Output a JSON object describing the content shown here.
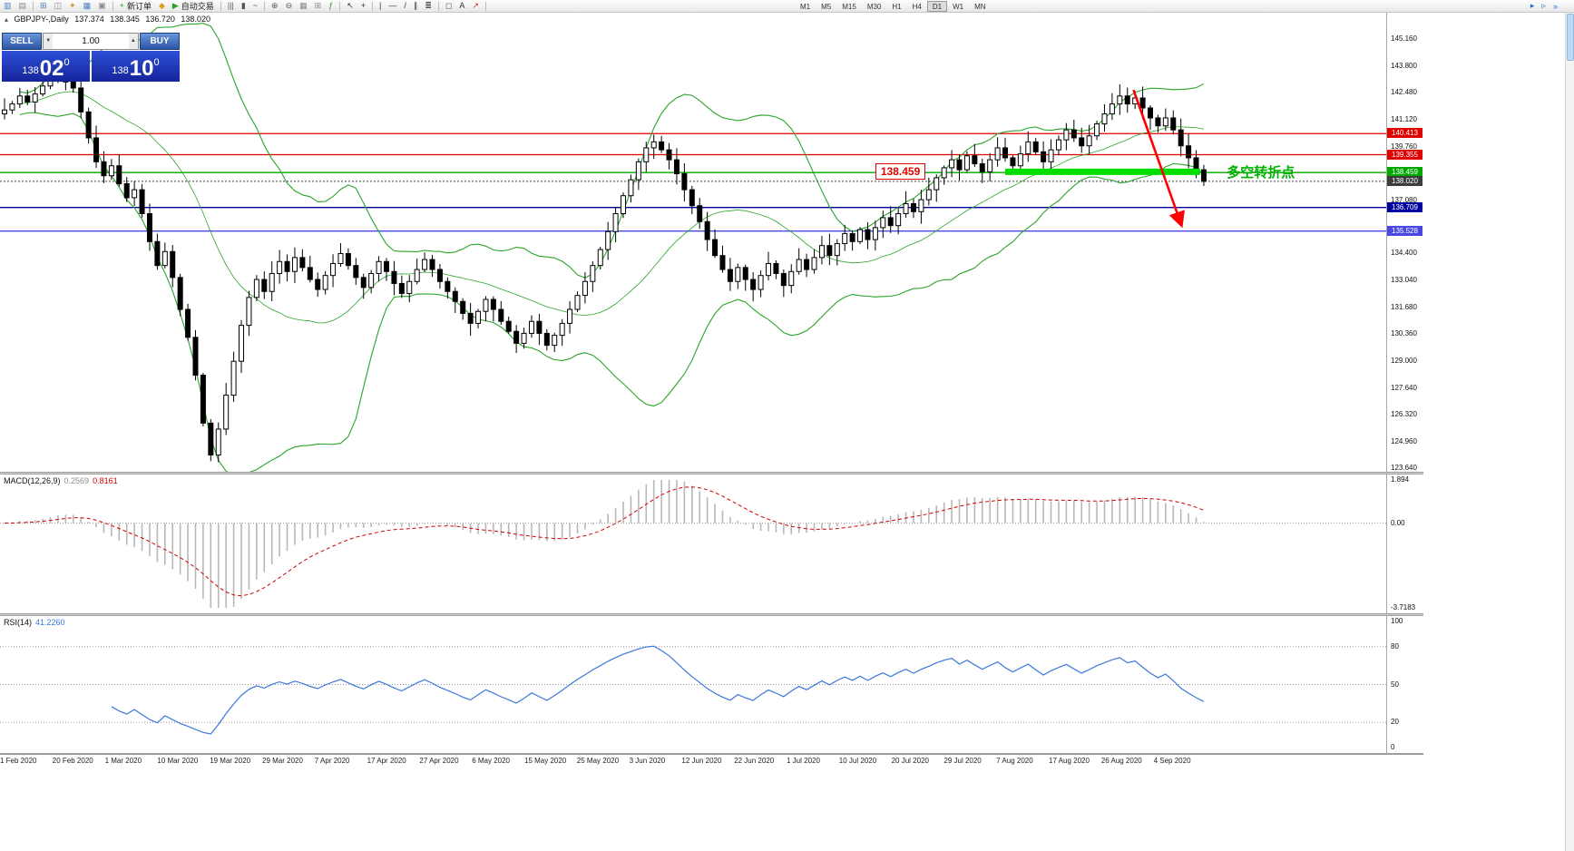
{
  "toolbar": {
    "items": [
      {
        "name": "new-chart-icon",
        "glyph": "▥",
        "color": "#4a7ec0"
      },
      {
        "name": "chart-profiles-icon",
        "glyph": "▤",
        "color": "#8a8a8a"
      },
      {
        "sep": true
      },
      {
        "name": "market-watch-icon",
        "glyph": "⊞",
        "color": "#4a7ec0"
      },
      {
        "name": "data-window-icon",
        "glyph": "◫",
        "color": "#8a8a8a"
      },
      {
        "name": "navigator-icon",
        "glyph": "✦",
        "color": "#c89a2a"
      },
      {
        "name": "terminal-icon",
        "glyph": "▦",
        "color": "#4a7ec0"
      },
      {
        "name": "strategy-tester-icon",
        "glyph": "▣",
        "color": "#8a8a8a"
      },
      {
        "sep": true
      },
      {
        "name": "new-order-button",
        "glyph": "+",
        "color": "#1fa51f",
        "label": "新订单"
      },
      {
        "name": "metaeditor-icon",
        "glyph": "◆",
        "color": "#d4a017"
      },
      {
        "name": "auto-trading-button",
        "glyph": "▶",
        "color": "#1fa51f",
        "label": "自动交易"
      },
      {
        "sep": true
      },
      {
        "name": "chart-bars-icon",
        "glyph": "|||",
        "color": "#555555"
      },
      {
        "name": "chart-candles-icon",
        "glyph": "▮",
        "color": "#555555"
      },
      {
        "name": "chart-line-icon",
        "glyph": "~",
        "color": "#555555"
      },
      {
        "sep": true
      },
      {
        "name": "zoom-in-icon",
        "glyph": "⊕",
        "color": "#555555"
      },
      {
        "name": "zoom-out-icon",
        "glyph": "⊖",
        "color": "#555555"
      },
      {
        "name": "auto-arrange-icon",
        "glyph": "▦",
        "color": "#8a8a8a"
      },
      {
        "name": "grid-icon",
        "glyph": "⊞",
        "color": "#8a8a8a"
      },
      {
        "name": "indicators-icon",
        "glyph": "ƒ",
        "color": "#1fa51f"
      },
      {
        "sep": true
      },
      {
        "name": "cursor-icon",
        "glyph": "↖",
        "color": "#333333"
      },
      {
        "name": "crosshair-icon",
        "glyph": "+",
        "color": "#333333"
      },
      {
        "sep": true
      },
      {
        "name": "vertical-line-icon",
        "glyph": "|",
        "color": "#333333"
      },
      {
        "name": "horizontal-line-icon",
        "glyph": "—",
        "color": "#333333"
      },
      {
        "name": "trendline-icon",
        "glyph": "/",
        "color": "#333333"
      },
      {
        "name": "channel-icon",
        "glyph": "∥",
        "color": "#333333"
      },
      {
        "name": "fibonacci-icon",
        "glyph": "≣",
        "color": "#333333"
      },
      {
        "sep": true
      },
      {
        "name": "shapes-icon",
        "glyph": "◻",
        "color": "#555555"
      },
      {
        "name": "text-icon",
        "glyph": "A",
        "color": "#333333"
      },
      {
        "name": "arrows-icon",
        "glyph": "↗",
        "color": "#c03030"
      },
      {
        "sep": true
      }
    ],
    "timeframes": {
      "items": [
        "M1",
        "M5",
        "M15",
        "M30",
        "H1",
        "H4",
        "D1",
        "W1",
        "MN"
      ],
      "active": "D1"
    },
    "icons_right": [
      {
        "name": "chart-shift-icon",
        "glyph": "▸",
        "color": "#1f6fd0"
      },
      {
        "name": "auto-scroll-icon",
        "glyph": "▹",
        "color": "#1f6fd0"
      },
      {
        "name": "toolbar-overflow-icon",
        "glyph": "»",
        "color": "#1f6fd0"
      }
    ]
  },
  "chart": {
    "toggle_glyph": "▴",
    "symbol_period": "GBPJPY-,Daily",
    "open": "137.374",
    "high": "138.345",
    "low": "136.720",
    "close": "138.020"
  },
  "trade_panel": {
    "sell_label": "SELL",
    "buy_label": "BUY",
    "volume": "1.00",
    "volume_down_glyph": "▼",
    "volume_up_glyph": "▲",
    "sell_price": {
      "prefix": "138",
      "big": "02",
      "sup": "0"
    },
    "buy_price": {
      "prefix": "138",
      "big": "10",
      "sup": "0"
    }
  },
  "levels": [
    {
      "price": 140.413,
      "label": "140.413",
      "color": "#e10000",
      "width": 1.2,
      "style": "solid"
    },
    {
      "price": 139.355,
      "label": "139.355",
      "color": "#e10000",
      "width": 1.2,
      "style": "solid"
    },
    {
      "price": 138.459,
      "label": "138.459",
      "color": "#00a800",
      "width": 1.4,
      "style": "solid"
    },
    {
      "price": 138.02,
      "label": "138.020",
      "color": "#3c3c3c",
      "width": 1.0,
      "style": "dotted"
    },
    {
      "price": 136.709,
      "label": "136.709",
      "color": "#0000a0",
      "width": 1.4,
      "style": "solid"
    },
    {
      "price": 135.528,
      "label": "135.528",
      "color": "#4848e0",
      "width": 1.4,
      "style": "solid"
    }
  ],
  "annotations": {
    "price_callout": {
      "text": "138.459",
      "index": 114,
      "price": 138.459,
      "color": "#e10000"
    },
    "cn_note": {
      "text": "多空转折点",
      "index": 160,
      "price": 138.5,
      "color": "#00b000"
    },
    "green_bar": {
      "from_index": 131,
      "to_index": 156.5,
      "price": 138.5,
      "color": "#00dd00",
      "thickness": 7
    },
    "red_arrow": {
      "from_index": 147.8,
      "from_price": 142.6,
      "to_index": 154,
      "to_price": 135.9,
      "color": "#ff0000"
    }
  },
  "macd": {
    "name": "MACD(12,26,9)",
    "value_main": "0.2569",
    "value_signal": "0.8161",
    "axis_labels": [
      "1.894",
      "0.00",
      "-3.7183"
    ]
  },
  "rsi": {
    "name": "RSI(14)",
    "value": "41.2260",
    "axis_labels": [
      "100",
      "80",
      "50",
      "20",
      "0"
    ]
  },
  "colors": {
    "bollinger": "#2aa52a",
    "candle": "#000000",
    "candle_up_fill": "#ffffff",
    "macd_histogram": "#b8b8b8",
    "macd_signal": "#d00000",
    "rsi_line": "#3c78dc",
    "grid_dotted": "#999999"
  },
  "chart_data": {
    "type": "candlestick",
    "symbol": "GBPJPY-",
    "timeframe": "Daily",
    "last_ohlc": {
      "open": 137.374,
      "high": 138.345,
      "low": 136.72,
      "close": 138.02
    },
    "first_open": 141.4,
    "closes": [
      141.6,
      141.9,
      142.3,
      142.0,
      142.4,
      142.8,
      143.1,
      143.4,
      143.0,
      142.7,
      141.5,
      140.2,
      139.0,
      138.3,
      138.8,
      137.9,
      137.2,
      137.6,
      136.4,
      135.0,
      133.8,
      134.5,
      133.2,
      131.6,
      130.2,
      128.3,
      125.9,
      124.3,
      125.6,
      127.3,
      129.0,
      130.8,
      132.2,
      133.1,
      132.5,
      133.4,
      134.0,
      133.5,
      134.2,
      133.7,
      133.1,
      132.6,
      133.3,
      133.9,
      134.4,
      133.8,
      133.2,
      132.7,
      133.4,
      134.0,
      133.5,
      132.9,
      132.4,
      133.0,
      133.6,
      134.1,
      133.6,
      133.0,
      132.5,
      132.0,
      131.4,
      130.9,
      131.5,
      132.1,
      131.6,
      131.0,
      130.5,
      129.9,
      130.4,
      131.0,
      130.4,
      129.8,
      130.3,
      130.9,
      131.6,
      132.3,
      133.0,
      133.8,
      134.6,
      135.5,
      136.4,
      137.3,
      138.1,
      139.0,
      139.7,
      140.0,
      139.6,
      139.1,
      138.4,
      137.6,
      136.8,
      136.0,
      135.1,
      134.3,
      133.6,
      133.0,
      133.7,
      133.1,
      132.6,
      133.3,
      133.9,
      133.4,
      132.8,
      133.5,
      134.1,
      133.6,
      134.2,
      134.8,
      134.3,
      134.9,
      135.4,
      135.0,
      135.6,
      135.1,
      135.7,
      136.2,
      135.8,
      136.4,
      136.9,
      136.5,
      137.1,
      137.6,
      138.2,
      138.7,
      139.1,
      138.6,
      139.3,
      138.9,
      138.5,
      139.1,
      139.7,
      139.2,
      138.8,
      139.4,
      140.0,
      139.5,
      139.0,
      139.6,
      140.1,
      140.6,
      140.2,
      139.8,
      140.3,
      140.9,
      141.4,
      141.9,
      142.3,
      141.9,
      142.2,
      141.7,
      141.2,
      140.8,
      141.2,
      140.6,
      139.8,
      139.2,
      138.6,
      138.02
    ],
    "ylim": [
      123.46,
      146.52
    ],
    "y_tick_labels": [
      "145.160",
      "143.800",
      "142.480",
      "141.120",
      "139.760",
      "137.080",
      "134.400",
      "133.040",
      "131.680",
      "130.360",
      "129.000",
      "127.640",
      "126.320",
      "124.960",
      "123.640"
    ],
    "x_tick_labels": [
      "1 Feb 2020",
      "20 Feb 2020",
      "1 Mar 2020",
      "10 Mar 2020",
      "19 Mar 2020",
      "29 Mar 2020",
      "7 Apr 2020",
      "17 Apr 2020",
      "27 Apr 2020",
      "6 May 2020",
      "15 May 2020",
      "25 May 2020",
      "3 Jun 2020",
      "12 Jun 2020",
      "22 Jun 2020",
      "1 Jul 2020",
      "10 Jul 2020",
      "20 Jul 2020",
      "29 Jul 2020",
      "7 Aug 2020",
      "17 Aug 2020",
      "26 Aug 2020",
      "4 Sep 2020"
    ],
    "indicators": [
      {
        "type": "bollinger_bands",
        "period": 20,
        "deviation": 2
      },
      {
        "type": "macd",
        "fast": 12,
        "slow": 26,
        "signal": 9,
        "current_main": 0.2569,
        "current_signal": 0.8161,
        "ylim": [
          -3.7183,
          1.894
        ]
      },
      {
        "type": "rsi",
        "period": 14,
        "current": 41.226,
        "levels": [
          80,
          50,
          20
        ],
        "ylim": [
          0,
          100
        ]
      }
    ]
  }
}
